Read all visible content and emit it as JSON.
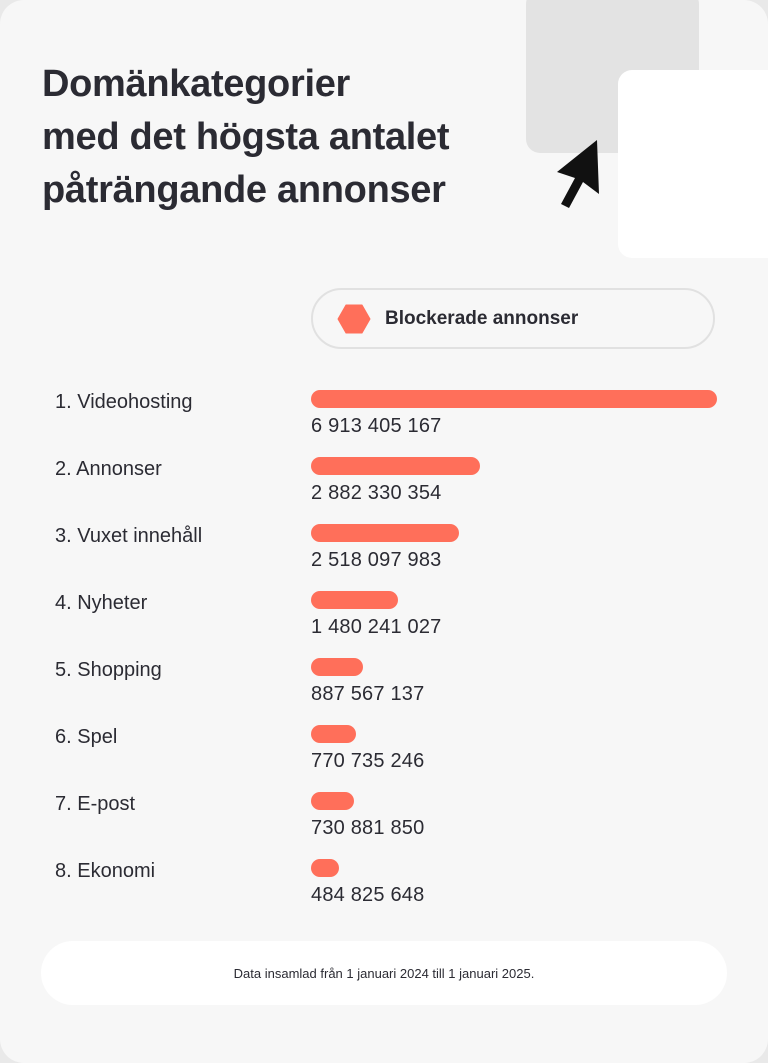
{
  "title_lines": [
    "Domänkategorier",
    "med det högsta antalet",
    "påträngande annonser"
  ],
  "legend": {
    "label": "Blockerade annonser",
    "color": "#ff6f5a"
  },
  "footer": "Data insamlad från 1 januari 2024 till 1 januari 2025.",
  "icons": [
    "browser-window-icon",
    "cursor-arrow-icon",
    "hexagon-icon"
  ],
  "chart_data": {
    "type": "bar",
    "orientation": "horizontal",
    "categories": [
      "1. Videohosting",
      "2. Annonser",
      "3. Vuxet innehåll",
      "4. Nyheter",
      "5. Shopping",
      "6. Spel",
      "7. E-post",
      "8. Ekonomi"
    ],
    "value_labels": [
      "6 913 405 167",
      "2 882 330 354",
      "2 518 097 983",
      "1 480 241 027",
      "887 567 137",
      "770 735 246",
      "730 881 850",
      "484 825 648"
    ],
    "series": [
      {
        "name": "Blockerade annonser",
        "values": [
          6913405167,
          2882330354,
          2518097983,
          1480241027,
          887567137,
          770735246,
          730881850,
          484825648
        ]
      }
    ]
  }
}
